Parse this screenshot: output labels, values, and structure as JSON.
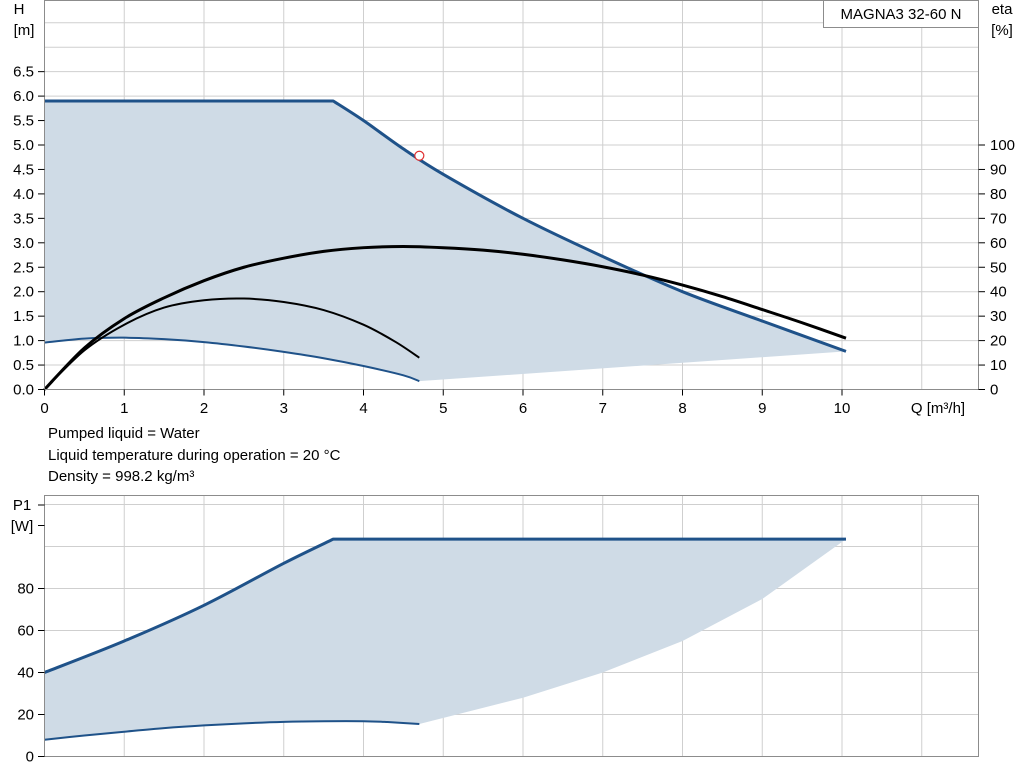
{
  "chart_data": [
    {
      "type": "line",
      "model_label": "MAGNA3 32-60 N",
      "ylabel": "H",
      "yunit": "[m]",
      "y2label": "eta",
      "y2unit": "[%]",
      "xlabel": "Q [m³/h]",
      "xlim": [
        0,
        11.7
      ],
      "ylim": [
        0,
        7.5
      ],
      "y2lim": [
        0,
        153
      ],
      "x_ticks": [
        0,
        1,
        2,
        3,
        4,
        5,
        6,
        7,
        8,
        9,
        10
      ],
      "y_ticks": [
        0.0,
        0.5,
        1.0,
        1.5,
        2.0,
        2.5,
        3.0,
        3.5,
        4.0,
        4.5,
        5.0,
        5.5,
        6.0,
        6.5
      ],
      "y2_ticks": [
        0,
        10,
        20,
        30,
        40,
        50,
        60,
        70,
        80,
        90,
        100
      ],
      "fill_color": "#cfdbe6",
      "series": [
        {
          "role": "head_max",
          "color": "#1f5289",
          "x": [
            0,
            3.62,
            4.0,
            4.5,
            5.0,
            6.0,
            7.0,
            8.0,
            9.0,
            10.05
          ],
          "y": [
            5.9,
            5.9,
            5.5,
            4.92,
            4.4,
            3.5,
            2.72,
            2.0,
            1.4,
            0.78
          ]
        },
        {
          "role": "head_min",
          "color": "#1f5289",
          "x": [
            0,
            0.5,
            1.0,
            1.5,
            2.0,
            2.5,
            3.0,
            3.5,
            4.0,
            4.5,
            4.7
          ],
          "y": [
            0.96,
            1.04,
            1.06,
            1.03,
            0.97,
            0.88,
            0.77,
            0.64,
            0.48,
            0.29,
            0.17
          ]
        },
        {
          "role": "area_lower_edge",
          "color": "#cfdbe6",
          "x": [
            4.7,
            10.05
          ],
          "y": [
            0.17,
            0.78
          ]
        },
        {
          "role": "eta_max",
          "color": "#000000",
          "axis": "eta",
          "x": [
            0,
            0.5,
            1,
            1.5,
            2,
            2.5,
            3,
            3.5,
            4,
            4.5,
            5,
            5.5,
            6,
            6.5,
            7,
            7.5,
            8,
            8.5,
            9,
            9.5,
            10.05
          ],
          "y": [
            0,
            17.0,
            29.0,
            37.5,
            44.5,
            50.0,
            53.7,
            56.5,
            58.0,
            58.5,
            58.0,
            57.0,
            55.3,
            53.0,
            50.2,
            46.8,
            42.7,
            38.0,
            32.7,
            27.3,
            21.0
          ]
        },
        {
          "role": "eta_min",
          "color": "#000000",
          "axis": "eta",
          "x": [
            0,
            0.5,
            1,
            1.5,
            2,
            2.5,
            3,
            3.5,
            4,
            4.4,
            4.7
          ],
          "y": [
            0,
            16.0,
            26.5,
            33.5,
            36.5,
            37.2,
            35.8,
            32.5,
            26.5,
            19.5,
            13.0
          ]
        }
      ],
      "duty_point": {
        "x": 4.7,
        "y": 4.78,
        "color": "#e03030"
      }
    },
    {
      "type": "line",
      "ylabel": "P1",
      "yunit": "[W]",
      "xlim": [
        0,
        11.7
      ],
      "ylim": [
        0,
        125
      ],
      "y_ticks": [
        0,
        20,
        40,
        60,
        80
      ],
      "fill_color": "#cfdbe6",
      "series": [
        {
          "role": "power_max",
          "color": "#1f5289",
          "x": [
            0,
            1,
            2,
            3,
            3.62,
            4.0,
            5,
            6,
            7,
            8,
            9,
            10.05
          ],
          "y": [
            40.0,
            55.0,
            72.0,
            92.0,
            103.5,
            103.5,
            103.5,
            103.5,
            103.5,
            103.5,
            103.5,
            103.5
          ]
        },
        {
          "role": "power_min",
          "color": "#1f5289",
          "x": [
            0,
            0.5,
            1,
            1.5,
            2,
            2.5,
            3,
            3.5,
            4,
            4.3,
            4.7
          ],
          "y": [
            8.0,
            10.0,
            11.8,
            13.5,
            14.8,
            15.8,
            16.5,
            16.8,
            16.8,
            16.4,
            15.5
          ]
        },
        {
          "role": "area_lower_edge",
          "color": "#cfdbe6",
          "x": [
            4.7,
            6,
            7,
            8,
            9,
            10.05
          ],
          "y": [
            15.5,
            28.0,
            40.0,
            55.0,
            75.0,
            103.5
          ]
        }
      ]
    }
  ],
  "info": {
    "pumped_liquid": "Pumped liquid = Water",
    "liquid_temp": "Liquid temperature during operation = 20 °C",
    "density": "Density = 998.2 kg/m³"
  }
}
